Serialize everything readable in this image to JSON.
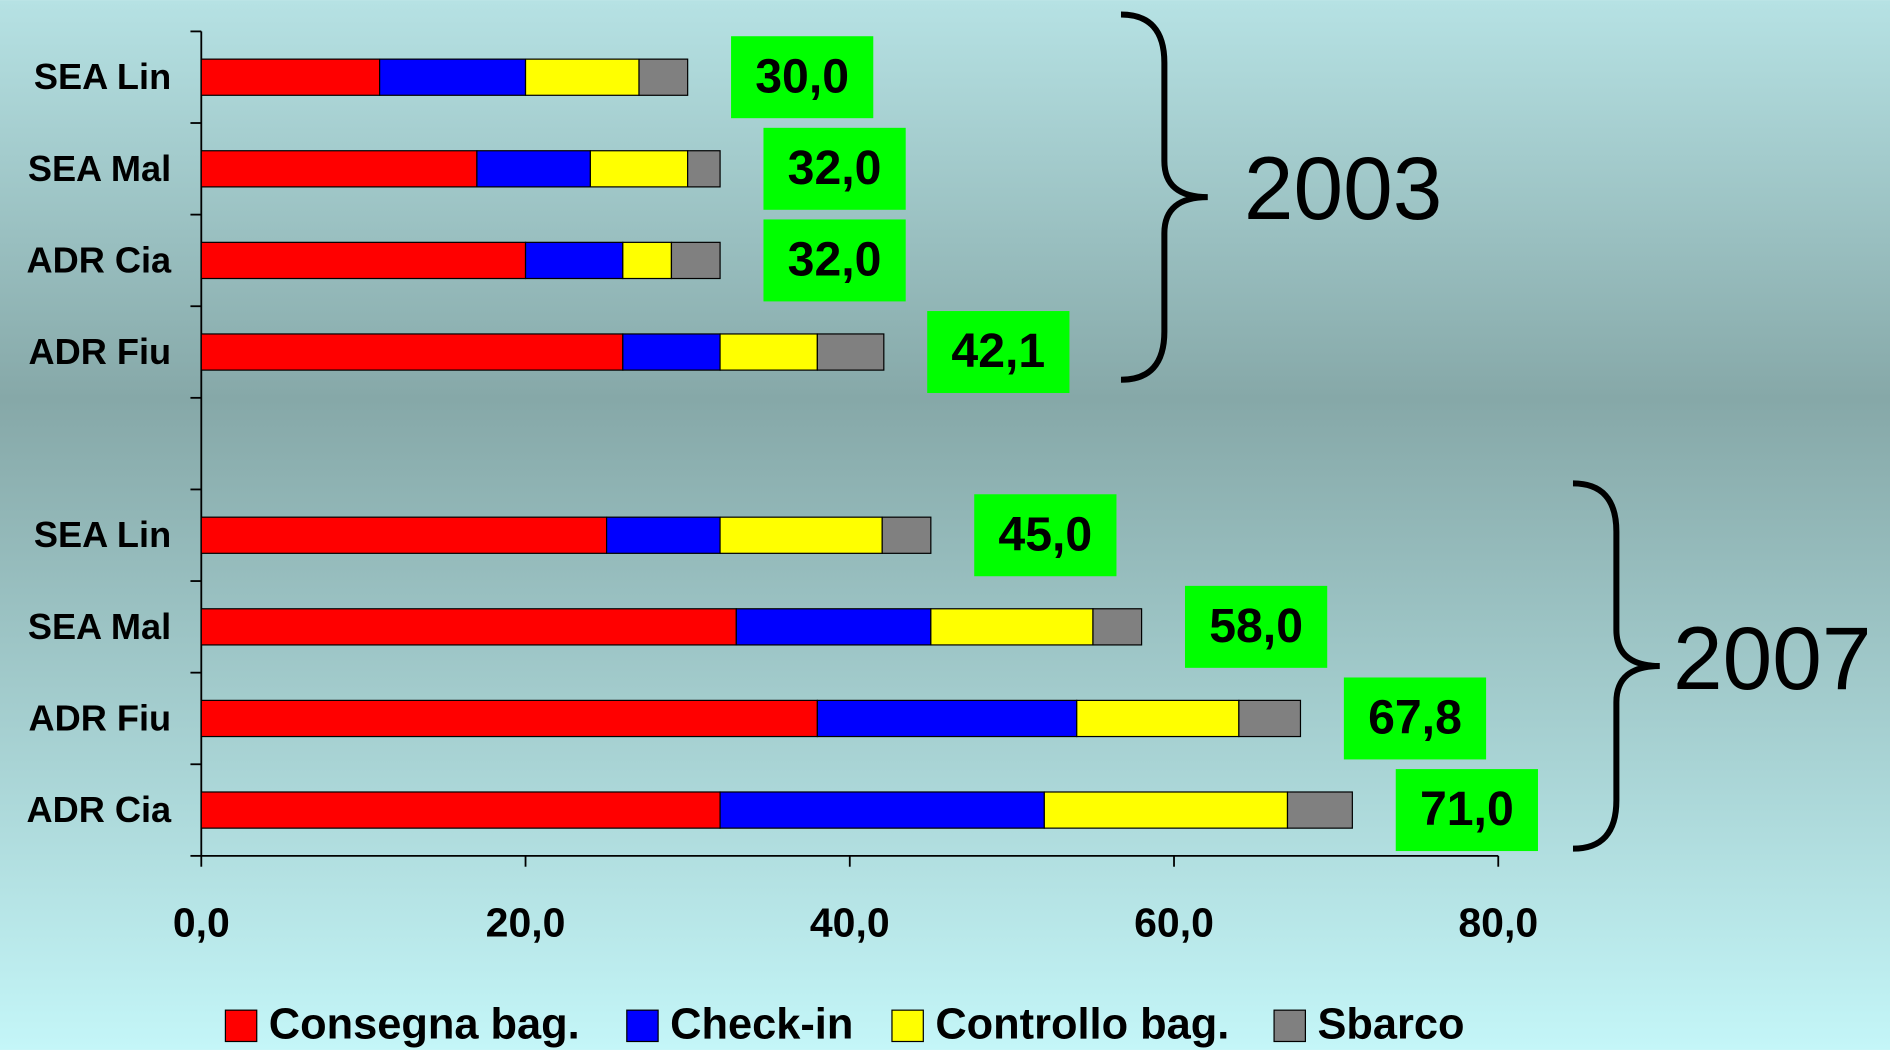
{
  "chart_data": {
    "type": "stacked-barh",
    "categories": [
      "SEA Lin",
      "SEA Mal",
      "ADR Cia",
      "ADR Fiu",
      null,
      "SEA Lin",
      "SEA Mal",
      "ADR Fiu",
      "ADR Cia"
    ],
    "series": [
      {
        "name": "Consegna bag.",
        "color": "#ff0000",
        "values": [
          11,
          17,
          20,
          26,
          null,
          25,
          33,
          38,
          32
        ]
      },
      {
        "name": "Check-in",
        "color": "#0000ff",
        "values": [
          9,
          7,
          6,
          6,
          null,
          7,
          12,
          16,
          20
        ]
      },
      {
        "name": "Controllo bag.",
        "color": "#ffff00",
        "values": [
          7,
          6,
          3,
          6,
          null,
          10,
          10,
          10,
          15
        ]
      },
      {
        "name": "Sbarco",
        "color": "#808080",
        "values": [
          3,
          2,
          3,
          4.1,
          null,
          3,
          3,
          3.8,
          4
        ]
      }
    ],
    "totals": [
      30,
      32,
      32,
      42.1,
      null,
      45,
      58,
      67.8,
      71
    ],
    "total_labels": [
      "30,0",
      "32,0",
      "32,0",
      "42,1",
      null,
      "45,0",
      "58,0",
      "67,8",
      "71,0"
    ],
    "total_label_color": "#00ff00",
    "annotations": [
      {
        "text": "2003"
      },
      {
        "text": "2007"
      }
    ],
    "xlim": [
      0,
      80
    ],
    "xticks": [
      {
        "value": 0,
        "label": "0,0"
      },
      {
        "value": 20,
        "label": "20,0"
      },
      {
        "value": 40,
        "label": "40,0"
      },
      {
        "value": 60,
        "label": "60,0"
      },
      {
        "value": 80,
        "label": "80,0"
      }
    ],
    "legend": "bottom"
  }
}
